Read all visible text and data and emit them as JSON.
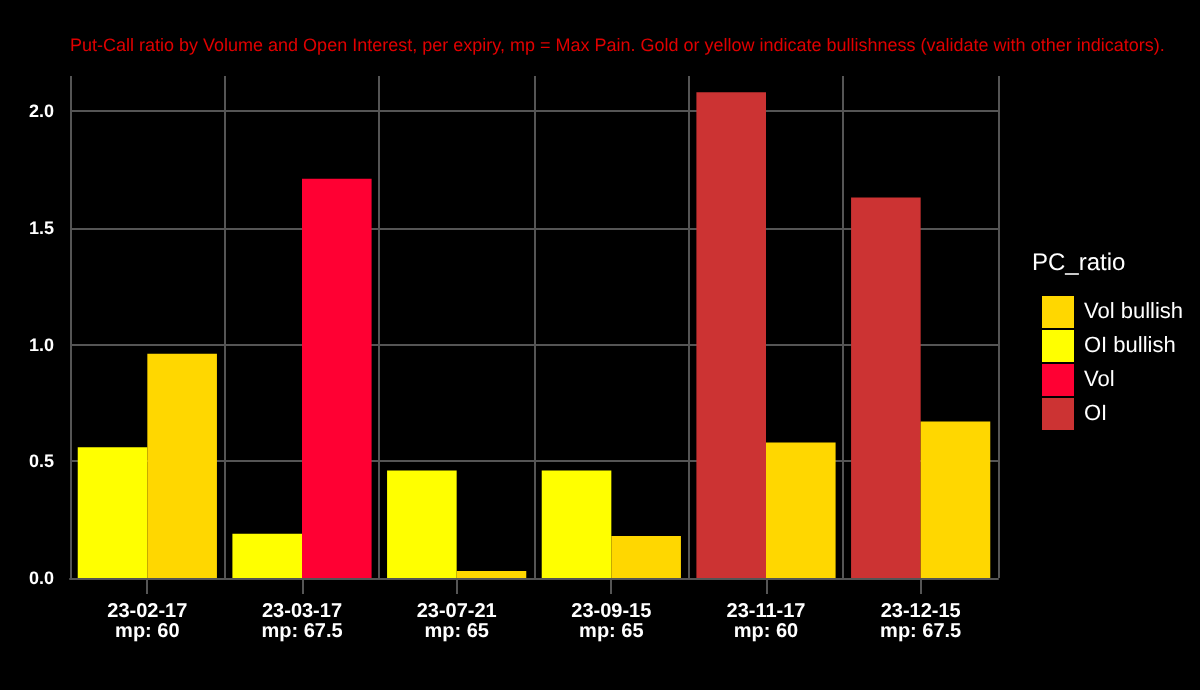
{
  "chart_data": {
    "type": "bar",
    "subtitle": "Put-Call ratio by Volume and Open Interest, per expiry, mp = Max Pain. Gold or yellow indicate bullishness (validate with other indicators).",
    "categories": [
      "23-02-17\nmp: 60",
      "23-03-17\nmp: 67.5",
      "23-07-21\nmp: 65",
      "23-09-15\nmp: 65",
      "23-11-17\nmp: 60",
      "23-12-15\nmp: 67.5"
    ],
    "legend_title": "PC_ratio",
    "grid": true,
    "legend": "right",
    "ylim": [
      0,
      2.15
    ],
    "yticks": [
      {
        "value": 0,
        "label": "0.0"
      },
      {
        "value": 0.5,
        "label": "0.5"
      },
      {
        "value": 1,
        "label": "1.0"
      },
      {
        "value": 1.5,
        "label": "1.5"
      },
      {
        "value": 2,
        "label": "2.0"
      }
    ],
    "series": [
      {
        "name": "Vol bullish",
        "color": "#ffd700",
        "values": [
          0.96,
          null,
          0.03,
          0.18,
          0.58,
          0.67
        ]
      },
      {
        "name": "OI bullish",
        "color": "#ffff00",
        "values": [
          0.56,
          0.19,
          0.46,
          0.46,
          null,
          null
        ]
      },
      {
        "name": "Vol",
        "color": "#ff0033",
        "values": [
          null,
          1.71,
          null,
          null,
          null,
          null
        ]
      },
      {
        "name": "OI",
        "color": "#cc3333",
        "values": [
          null,
          null,
          null,
          null,
          2.08,
          1.63
        ]
      }
    ]
  }
}
